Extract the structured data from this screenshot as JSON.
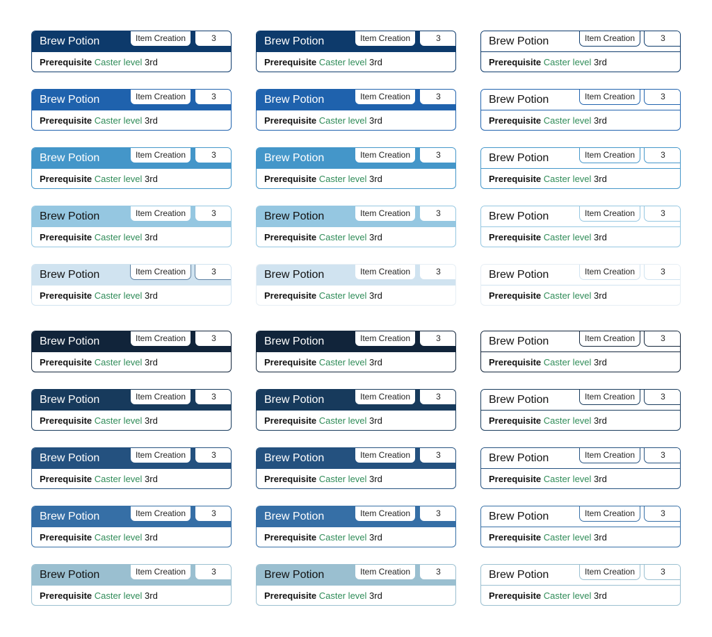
{
  "card": {
    "title": "Brew Potion",
    "tag": "Item Creation",
    "number": "3",
    "prereq_label": "Prerequisite",
    "prereq_mid": "Caster level",
    "prereq_value": "3rd"
  },
  "colors": {
    "shades": [
      "#0d3a6b",
      "#1f62ad",
      "#4496c9",
      "#95c7e1",
      "#d0e3f0",
      "#11243a",
      "#173a5c",
      "#24517f",
      "#366fa6",
      "#9abfd0"
    ],
    "title_text": [
      "#ffffff",
      "#ffffff",
      "#ffffff",
      "#111111",
      "#111111",
      "#ffffff",
      "#ffffff",
      "#ffffff",
      "#ffffff",
      "#111111"
    ],
    "prereq_green": "#2e8b57"
  },
  "styles": [
    "filled",
    "bar",
    "outline"
  ]
}
